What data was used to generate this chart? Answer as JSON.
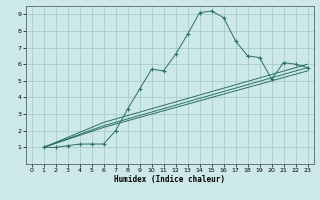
{
  "title": "",
  "xlabel": "Humidex (Indice chaleur)",
  "bg_color": "#cce8e8",
  "grid_color": "#aacccc",
  "line_color": "#2a7068",
  "xlim": [
    -0.5,
    23.5
  ],
  "ylim": [
    0,
    9.5
  ],
  "xticks": [
    0,
    1,
    2,
    3,
    4,
    5,
    6,
    7,
    8,
    9,
    10,
    11,
    12,
    13,
    14,
    15,
    16,
    17,
    18,
    19,
    20,
    21,
    22,
    23
  ],
  "yticks": [
    1,
    2,
    3,
    4,
    5,
    6,
    7,
    8,
    9
  ],
  "line1_x": [
    1,
    2,
    3,
    4,
    5,
    6,
    7,
    8,
    9,
    10,
    11,
    12,
    13,
    14,
    15,
    16,
    17,
    18,
    19,
    20,
    21,
    22,
    23
  ],
  "line1_y": [
    1,
    1,
    1.1,
    1.2,
    1.2,
    1.2,
    2.0,
    3.3,
    4.5,
    5.7,
    5.6,
    6.6,
    7.8,
    9.1,
    9.2,
    8.8,
    7.4,
    6.5,
    6.4,
    5.1,
    6.1,
    6.0,
    5.8
  ],
  "line2_x": [
    1,
    6,
    23
  ],
  "line2_y": [
    1,
    2.5,
    6.0
  ],
  "line3_x": [
    1,
    6,
    23
  ],
  "line3_y": [
    1,
    2.3,
    5.8
  ],
  "line4_x": [
    1,
    6,
    23
  ],
  "line4_y": [
    1,
    2.2,
    5.6
  ]
}
